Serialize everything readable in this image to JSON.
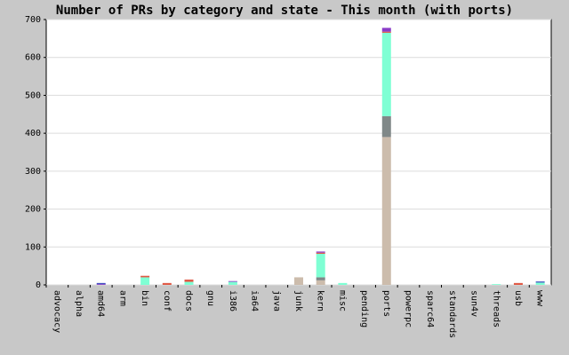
{
  "chart_data": {
    "type": "stacked-bar",
    "title": "Number of PRs by category and state - This month (with ports)",
    "categories": [
      "advocacy",
      "alpha",
      "amd64",
      "arm",
      "bin",
      "conf",
      "docs",
      "gnu",
      "i386",
      "ia64",
      "java",
      "junk",
      "kern",
      "misc",
      "pending",
      "ports",
      "powerpc",
      "sparc64",
      "standards",
      "sun4v",
      "threads",
      "usb",
      "www"
    ],
    "series": [
      {
        "color": "#ccbcac",
        "values": [
          0,
          0,
          0,
          0,
          0,
          0,
          0,
          0,
          0,
          0,
          0,
          20,
          12,
          0,
          0,
          390,
          0,
          0,
          0,
          0,
          0,
          0,
          0
        ]
      },
      {
        "color": "#808888",
        "values": [
          0,
          0,
          0,
          0,
          0,
          0,
          0,
          0,
          0,
          0,
          0,
          0,
          8,
          0,
          0,
          55,
          0,
          0,
          0,
          0,
          0,
          0,
          0
        ]
      },
      {
        "color": "#7fffd4",
        "values": [
          0,
          0,
          0,
          0,
          20,
          0,
          8,
          0,
          8,
          0,
          0,
          0,
          62,
          5,
          0,
          220,
          0,
          0,
          0,
          0,
          2,
          0,
          6
        ]
      },
      {
        "color": "#e05a46",
        "values": [
          0,
          0,
          0,
          0,
          4,
          5,
          6,
          0,
          0,
          0,
          0,
          0,
          3,
          0,
          0,
          3,
          0,
          0,
          0,
          0,
          0,
          5,
          0
        ]
      },
      {
        "color": "#8a3cc8",
        "values": [
          0,
          0,
          2,
          0,
          0,
          0,
          0,
          0,
          2,
          0,
          0,
          0,
          3,
          0,
          0,
          10,
          0,
          0,
          0,
          0,
          0,
          0,
          0
        ]
      },
      {
        "color": "#4050c0",
        "values": [
          0,
          0,
          3,
          0,
          0,
          0,
          0,
          0,
          0,
          0,
          0,
          0,
          0,
          0,
          0,
          0,
          0,
          0,
          0,
          0,
          0,
          0,
          3
        ]
      }
    ],
    "ylim": [
      0,
      700
    ],
    "yticks": [
      0,
      100,
      200,
      300,
      400,
      500,
      600,
      700
    ],
    "grid": true
  }
}
